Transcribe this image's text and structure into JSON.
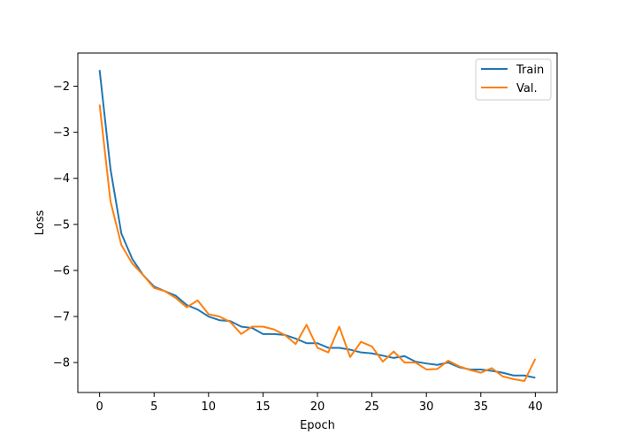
{
  "chart_data": {
    "type": "line",
    "title": "",
    "xlabel": "Epoch",
    "ylabel": "Loss",
    "xlim": [
      -2,
      42
    ],
    "ylim": [
      -8.65,
      -1.28
    ],
    "xticks": [
      0,
      5,
      10,
      15,
      20,
      25,
      30,
      35,
      40
    ],
    "xtick_labels": [
      "0",
      "5",
      "10",
      "15",
      "20",
      "25",
      "30",
      "35",
      "40"
    ],
    "yticks": [
      -8,
      -7,
      -6,
      -5,
      -4,
      -3,
      -2
    ],
    "ytick_labels": [
      "−8",
      "−7",
      "−6",
      "−5",
      "−4",
      "−3",
      "−2"
    ],
    "grid": false,
    "legend_position": "top-right",
    "x": [
      0,
      1,
      2,
      3,
      4,
      5,
      6,
      7,
      8,
      9,
      10,
      11,
      12,
      13,
      14,
      15,
      16,
      17,
      18,
      19,
      20,
      21,
      22,
      23,
      24,
      25,
      26,
      27,
      28,
      29,
      30,
      31,
      32,
      33,
      34,
      35,
      36,
      37,
      38,
      39,
      40
    ],
    "series": [
      {
        "name": "Train",
        "color": "#1f77b4",
        "values": [
          -1.65,
          -3.8,
          -5.2,
          -5.75,
          -6.1,
          -6.35,
          -6.45,
          -6.55,
          -6.75,
          -6.85,
          -7.0,
          -7.08,
          -7.1,
          -7.22,
          -7.25,
          -7.38,
          -7.38,
          -7.4,
          -7.48,
          -7.58,
          -7.58,
          -7.68,
          -7.68,
          -7.72,
          -7.78,
          -7.8,
          -7.85,
          -7.9,
          -7.86,
          -7.98,
          -8.02,
          -8.05,
          -8.0,
          -8.1,
          -8.15,
          -8.15,
          -8.18,
          -8.22,
          -8.28,
          -8.28,
          -8.33
        ]
      },
      {
        "name": "Val.",
        "color": "#ff7f0e",
        "values": [
          -2.4,
          -4.5,
          -5.45,
          -5.85,
          -6.1,
          -6.38,
          -6.45,
          -6.6,
          -6.8,
          -6.65,
          -6.95,
          -7.0,
          -7.12,
          -7.38,
          -7.22,
          -7.22,
          -7.28,
          -7.4,
          -7.6,
          -7.18,
          -7.68,
          -7.78,
          -7.22,
          -7.88,
          -7.55,
          -7.65,
          -7.98,
          -7.76,
          -8.0,
          -8.0,
          -8.15,
          -8.14,
          -7.96,
          -8.08,
          -8.16,
          -8.22,
          -8.12,
          -8.3,
          -8.36,
          -8.4,
          -7.92
        ]
      }
    ]
  }
}
